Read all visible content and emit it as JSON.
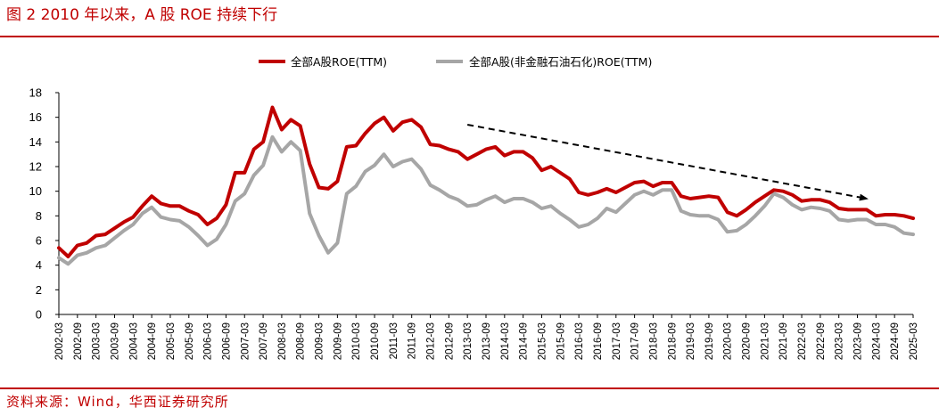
{
  "figure": {
    "title": "图 2 2010 年以来，A 股 ROE 持续下行",
    "source": "资料来源：Wind，华西证券研究所",
    "accent_color": "#c00000"
  },
  "chart_data": {
    "type": "line",
    "ylim": [
      0,
      18
    ],
    "yticks": [
      0,
      2,
      4,
      6,
      8,
      10,
      12,
      14,
      16,
      18
    ],
    "legend_position": "top-center",
    "x_tick_labels": [
      "2002-03",
      "2002-09",
      "2003-03",
      "2003-09",
      "2004-03",
      "2004-09",
      "2005-03",
      "2005-09",
      "2006-03",
      "2006-09",
      "2007-03",
      "2007-09",
      "2008-03",
      "2008-09",
      "2009-03",
      "2009-09",
      "2010-03",
      "2010-09",
      "2011-03",
      "2011-09",
      "2012-03",
      "2012-09",
      "2013-03",
      "2013-09",
      "2014-03",
      "2014-09",
      "2015-03",
      "2015-09",
      "2016-03",
      "2016-09",
      "2017-03",
      "2017-09",
      "2018-03",
      "2018-09",
      "2019-03",
      "2019-09",
      "2020-03",
      "2020-09",
      "2021-03",
      "2021-09",
      "2022-03",
      "2022-09",
      "2023-03",
      "2023-09",
      "2024-03",
      "2024-09",
      "2025-03"
    ],
    "x": [
      "2002-03",
      "2002-06",
      "2002-09",
      "2002-12",
      "2003-03",
      "2003-06",
      "2003-09",
      "2003-12",
      "2004-03",
      "2004-06",
      "2004-09",
      "2004-12",
      "2005-03",
      "2005-06",
      "2005-09",
      "2005-12",
      "2006-03",
      "2006-06",
      "2006-09",
      "2006-12",
      "2007-03",
      "2007-06",
      "2007-09",
      "2007-12",
      "2008-03",
      "2008-06",
      "2008-09",
      "2008-12",
      "2009-03",
      "2009-06",
      "2009-09",
      "2009-12",
      "2010-03",
      "2010-06",
      "2010-09",
      "2010-12",
      "2011-03",
      "2011-06",
      "2011-09",
      "2011-12",
      "2012-03",
      "2012-06",
      "2012-09",
      "2012-12",
      "2013-03",
      "2013-06",
      "2013-09",
      "2013-12",
      "2014-03",
      "2014-06",
      "2014-09",
      "2014-12",
      "2015-03",
      "2015-06",
      "2015-09",
      "2015-12",
      "2016-03",
      "2016-06",
      "2016-09",
      "2016-12",
      "2017-03",
      "2017-06",
      "2017-09",
      "2017-12",
      "2018-03",
      "2018-06",
      "2018-09",
      "2018-12",
      "2019-03",
      "2019-06",
      "2019-09",
      "2019-12",
      "2020-03",
      "2020-06",
      "2020-09",
      "2020-12",
      "2021-03",
      "2021-06",
      "2021-09",
      "2021-12",
      "2022-03",
      "2022-06",
      "2022-09",
      "2022-12",
      "2023-03",
      "2023-06",
      "2023-09",
      "2023-12",
      "2024-03",
      "2024-06",
      "2024-09",
      "2024-12",
      "2025-03"
    ],
    "series": [
      {
        "name": "全部A股ROE(TTM)",
        "color": "#c00000",
        "values": [
          5.4,
          4.7,
          5.6,
          5.8,
          6.4,
          6.5,
          7.0,
          7.5,
          7.9,
          8.8,
          9.6,
          9.0,
          8.8,
          8.8,
          8.4,
          8.1,
          7.3,
          7.8,
          8.9,
          11.5,
          11.5,
          13.4,
          14.0,
          16.8,
          15.0,
          15.8,
          15.3,
          12.2,
          10.3,
          10.2,
          10.8,
          13.6,
          13.7,
          14.7,
          15.5,
          16.0,
          14.9,
          15.6,
          15.8,
          15.2,
          13.8,
          13.7,
          13.4,
          13.2,
          12.6,
          13.0,
          13.4,
          13.6,
          12.9,
          13.2,
          13.2,
          12.7,
          11.7,
          12.0,
          11.5,
          11.0,
          9.9,
          9.7,
          9.9,
          10.2,
          9.9,
          10.3,
          10.7,
          10.8,
          10.4,
          10.7,
          10.7,
          9.6,
          9.4,
          9.5,
          9.6,
          9.5,
          8.3,
          8.0,
          8.5,
          9.1,
          9.6,
          10.1,
          10.0,
          9.7,
          9.2,
          9.3,
          9.3,
          9.1,
          8.6,
          8.5,
          8.5,
          8.5,
          8.0,
          8.1,
          8.1,
          8.0,
          7.8
        ]
      },
      {
        "name": "全部A股(非金融石油石化)ROE(TTM)",
        "color": "#a6a6a6",
        "values": [
          4.6,
          4.1,
          4.8,
          5.0,
          5.4,
          5.6,
          6.2,
          6.8,
          7.3,
          8.2,
          8.7,
          7.9,
          7.7,
          7.6,
          7.1,
          6.4,
          5.6,
          6.1,
          7.3,
          9.2,
          9.8,
          11.3,
          12.1,
          14.4,
          13.2,
          14.0,
          13.3,
          8.2,
          6.4,
          5.0,
          5.8,
          9.8,
          10.4,
          11.6,
          12.1,
          13.0,
          12.0,
          12.4,
          12.6,
          11.8,
          10.5,
          10.1,
          9.6,
          9.3,
          8.8,
          8.9,
          9.3,
          9.6,
          9.1,
          9.4,
          9.4,
          9.1,
          8.6,
          8.8,
          8.2,
          7.7,
          7.1,
          7.3,
          7.8,
          8.6,
          8.3,
          9.0,
          9.7,
          10.0,
          9.7,
          10.1,
          10.1,
          8.4,
          8.1,
          8.0,
          8.0,
          7.7,
          6.7,
          6.8,
          7.3,
          8.0,
          8.8,
          9.8,
          9.5,
          8.9,
          8.5,
          8.7,
          8.6,
          8.4,
          7.7,
          7.6,
          7.7,
          7.7,
          7.3,
          7.3,
          7.1,
          6.6,
          6.5
        ]
      }
    ],
    "annotations": [
      {
        "type": "trend-arrow",
        "style": "dashed",
        "color": "#000000",
        "from": {
          "x": "2013-03",
          "y": 15.4
        },
        "to": {
          "x": "2023-12",
          "y": 9.4
        }
      }
    ]
  }
}
